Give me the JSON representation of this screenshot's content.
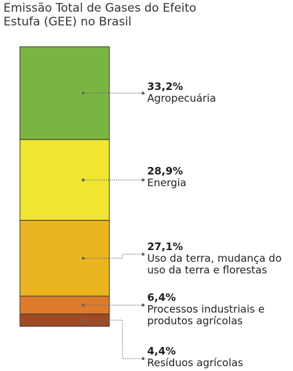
{
  "chart_data": {
    "type": "bar",
    "title_lines": [
      "Emissão Total de Gases do Efeito",
      "Estufa (GEE) no Brasil"
    ],
    "stacked": true,
    "unit": "%",
    "segments": [
      {
        "name": "Agropecuária",
        "label_lines": [
          "Agropecuária"
        ],
        "value": 33.2,
        "value_label": "33,2%",
        "color": "#7bb541"
      },
      {
        "name": "Energia",
        "label_lines": [
          "Energia"
        ],
        "value": 28.9,
        "value_label": "28,9%",
        "color": "#f0e531"
      },
      {
        "name": "Uso da terra, mudança do uso da terra e florestas",
        "label_lines": [
          "Uso da terra, mudança do",
          "uso da terra e florestas"
        ],
        "value": 27.1,
        "value_label": "27,1%",
        "color": "#ebb521"
      },
      {
        "name": "Processos industriais e produtos agrícolas",
        "label_lines": [
          "Processos industriais e",
          "produtos agrícolas"
        ],
        "value": 6.4,
        "value_label": "6,4%",
        "color": "#dd7b2b"
      },
      {
        "name": "Resíduos agrícolas",
        "label_lines": [
          "Resíduos agrícolas"
        ],
        "value": 4.4,
        "value_label": "4,4%",
        "color": "#a04a24"
      }
    ],
    "connector_color": "#666666",
    "border_color": "#333333"
  }
}
